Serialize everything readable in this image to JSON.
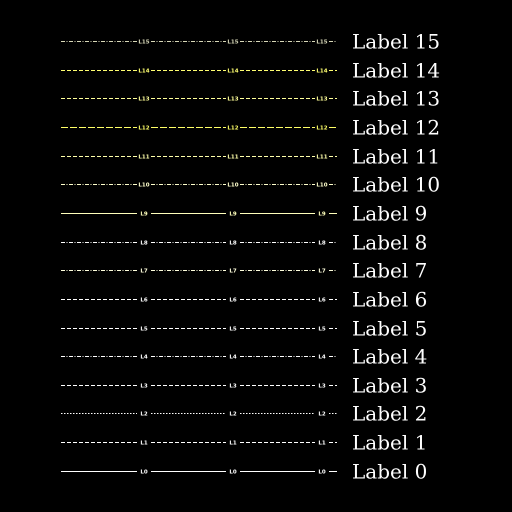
{
  "background": "#000000",
  "rows": [
    {
      "name": "Label 15",
      "tag": "L15",
      "color": "#d8d8b8",
      "dash": "dashdot"
    },
    {
      "name": "Label 14",
      "tag": "L14",
      "color": "#ffff70",
      "dash": "dashed"
    },
    {
      "name": "Label 13",
      "tag": "L13",
      "color": "#ffff99",
      "dash": "dashed"
    },
    {
      "name": "Label 12",
      "tag": "L12",
      "color": "#ffff66",
      "dash": "longdash"
    },
    {
      "name": "Label 11",
      "tag": "L11",
      "color": "#ffffaa",
      "dash": "dashed"
    },
    {
      "name": "Label 10",
      "tag": "L10",
      "color": "#ffffcc",
      "dash": "dashdot"
    },
    {
      "name": "Label 9",
      "tag": "L9",
      "color": "#ffffbb",
      "dash": "solid"
    },
    {
      "name": "Label 8",
      "tag": "L8",
      "color": "#ffffff",
      "dash": "dashdot"
    },
    {
      "name": "Label 7",
      "tag": "L7",
      "color": "#ffffdd",
      "dash": "dashdot"
    },
    {
      "name": "Label 6",
      "tag": "L6",
      "color": "#ffffff",
      "dash": "dashed"
    },
    {
      "name": "Label 5",
      "tag": "L5",
      "color": "#ffffff",
      "dash": "dashed"
    },
    {
      "name": "Label 4",
      "tag": "L4",
      "color": "#ffffff",
      "dash": "dashdot"
    },
    {
      "name": "Label 3",
      "tag": "L3",
      "color": "#ffffff",
      "dash": "dashed"
    },
    {
      "name": "Label 2",
      "tag": "L2",
      "color": "#ffffff",
      "dash": "dotted"
    },
    {
      "name": "Label 1",
      "tag": "L1",
      "color": "#ffffff",
      "dash": "dashed"
    },
    {
      "name": "Label 0",
      "tag": "L0",
      "color": "#ffffff",
      "dash": "solid"
    }
  ]
}
